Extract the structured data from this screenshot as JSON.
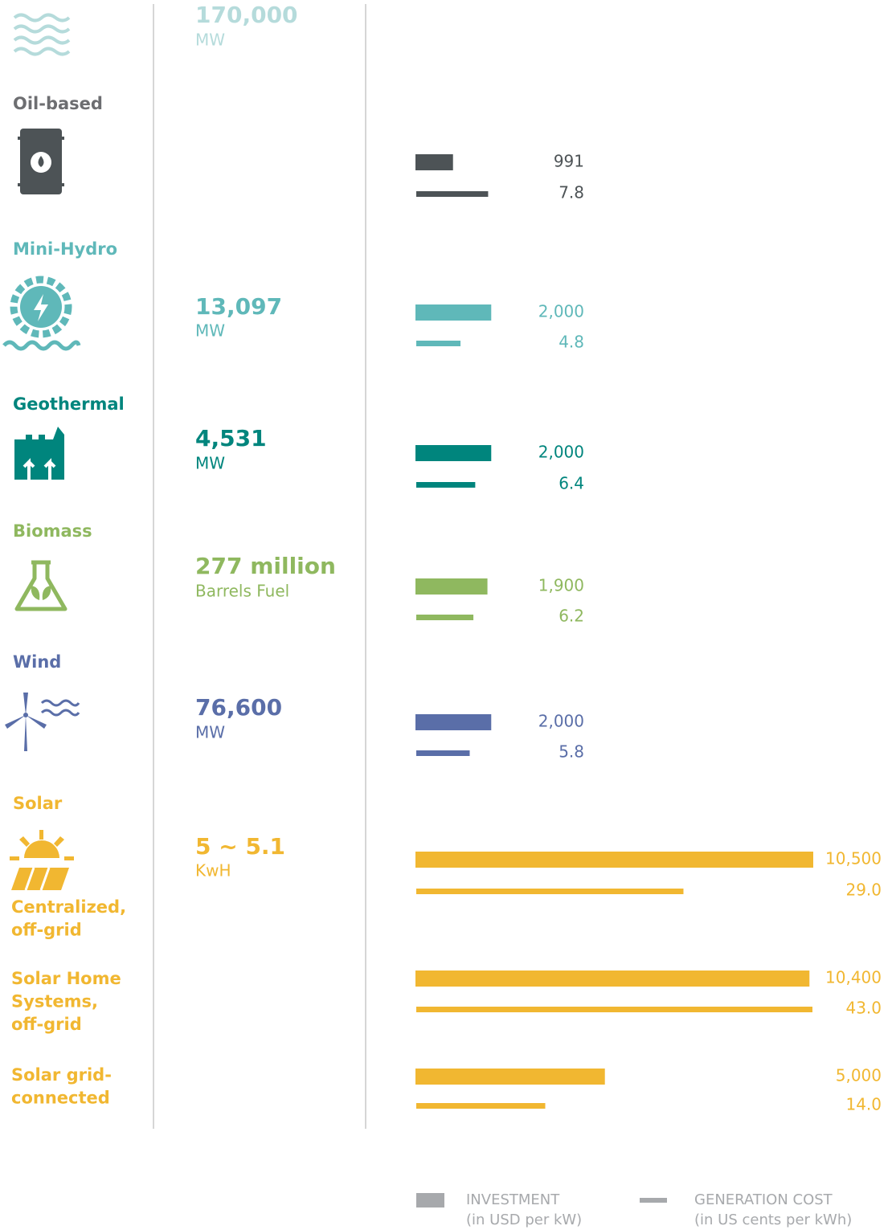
{
  "hydro": {
    "potential": "170,000",
    "unit": "MW",
    "color": "#b5dbdb"
  },
  "rows": [
    {
      "name": "Oil-based",
      "color": "#6d6e71",
      "bar_color": "#4d5356",
      "investment": 991,
      "cost": 7.8
    },
    {
      "name": "Mini-Hydro",
      "color": "#5fb8b9",
      "potential": "13,097",
      "unit": "MW",
      "investment": {
        "value": 2000,
        "label": "2,000"
      },
      "cost": 4.8
    },
    {
      "name": "Geothermal",
      "color": "#00857d",
      "potential": "4,531",
      "unit": "MW",
      "investment": {
        "value": 2000,
        "label": "2,000"
      },
      "cost": 6.4
    },
    {
      "name": "Biomass",
      "color": "#8fb85f",
      "potential": "277 million",
      "unit": "Barrels Fuel",
      "investment": {
        "value": 1900,
        "label": "1,900"
      },
      "cost": 6.2
    },
    {
      "name": "Wind",
      "color": "#5a6ea8",
      "potential": "76,600",
      "unit": "MW",
      "investment": {
        "value": 2000,
        "label": "2,000"
      },
      "cost": 5.8
    }
  ],
  "solar": {
    "name": "Solar",
    "color": "#f1b731",
    "potential": "5 ~ 5.1",
    "unit": "KwH",
    "rows": [
      {
        "name": [
          "Centralized,",
          "off-grid"
        ],
        "investment": {
          "value": 10500,
          "label": "10,500"
        },
        "cost": {
          "value": 29,
          "label": "29.0"
        }
      },
      {
        "name": [
          "Solar Home",
          "Systems,",
          "off-grid"
        ],
        "investment": {
          "value": 10400,
          "label": "10,400"
        },
        "cost": {
          "value": 43,
          "label": "43.0"
        }
      },
      {
        "name": [
          "Solar grid-",
          "connected"
        ],
        "investment": {
          "value": 5000,
          "label": "5,000"
        },
        "cost": {
          "value": 14,
          "label": "14.0"
        }
      }
    ]
  },
  "legend": {
    "investment": [
      "INVESTMENT",
      "(in USD per kW)"
    ],
    "cost": [
      "GENERATION COST",
      "(in US cents per kWh)"
    ]
  }
}
